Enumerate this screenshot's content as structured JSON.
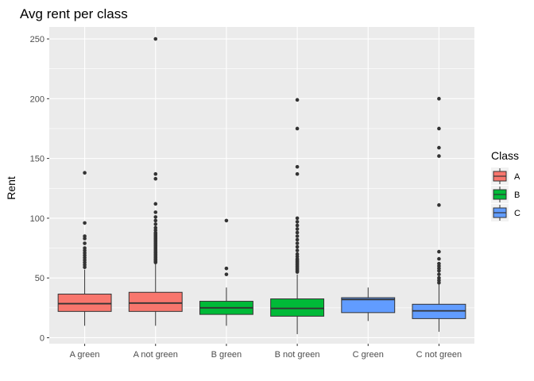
{
  "chart_data": {
    "type": "box",
    "title": "Avg rent per class",
    "xlabel": "",
    "ylabel": "Rent",
    "ylim": [
      -5,
      260
    ],
    "yticks": [
      0,
      50,
      100,
      150,
      200,
      250
    ],
    "grid": true,
    "legend": {
      "title": "Class",
      "placement": "right",
      "entries": [
        {
          "label": "A",
          "color": "#F8766D"
        },
        {
          "label": "B",
          "color": "#00BA38"
        },
        {
          "label": "C",
          "color": "#619CFF"
        }
      ]
    },
    "categories": [
      "A green",
      "A not green",
      "B green",
      "B not green",
      "C green",
      "C not green"
    ],
    "boxes": [
      {
        "category": "A green",
        "class": "A",
        "q1": 22,
        "median": 28.5,
        "q3": 36.5,
        "whisker_low": 10,
        "whisker_high": 57,
        "outliers": [
          59,
          61,
          63,
          65,
          67,
          69,
          71,
          73,
          75,
          79,
          83,
          85,
          96,
          138
        ]
      },
      {
        "category": "A not green",
        "class": "A",
        "q1": 22,
        "median": 29,
        "q3": 38,
        "whisker_low": 10,
        "whisker_high": 62,
        "outliers": [
          63,
          64,
          65,
          66,
          67,
          68,
          69,
          70,
          71,
          72,
          73,
          74,
          75,
          76,
          77,
          78,
          79,
          80,
          81,
          82,
          83,
          84,
          85,
          86,
          87,
          88,
          90,
          92,
          95,
          98,
          101,
          105,
          112,
          133,
          137,
          250
        ]
      },
      {
        "category": "B green",
        "class": "B",
        "q1": 19.5,
        "median": 25,
        "q3": 30.5,
        "whisker_low": 10,
        "whisker_high": 42,
        "outliers": [
          53,
          58,
          98
        ]
      },
      {
        "category": "B not green",
        "class": "B",
        "q1": 18,
        "median": 24.5,
        "q3": 32.5,
        "whisker_low": 3,
        "whisker_high": 53,
        "outliers": [
          55,
          56,
          57,
          58,
          59,
          60,
          61,
          62,
          63,
          64,
          65,
          66,
          68,
          70,
          73,
          76,
          79,
          82,
          85,
          88,
          91,
          94,
          97,
          100,
          137,
          143,
          175,
          199
        ]
      },
      {
        "category": "C green",
        "class": "C",
        "q1": 21,
        "median": 32,
        "q3": 33.5,
        "whisker_low": 14,
        "whisker_high": 42,
        "outliers": []
      },
      {
        "category": "C not green",
        "class": "C",
        "q1": 16,
        "median": 22.5,
        "q3": 28,
        "whisker_low": 5,
        "whisker_high": 45,
        "outliers": [
          46,
          48,
          50,
          53,
          56,
          58,
          60,
          62,
          66,
          72,
          111,
          152,
          159,
          175,
          200
        ]
      }
    ]
  }
}
